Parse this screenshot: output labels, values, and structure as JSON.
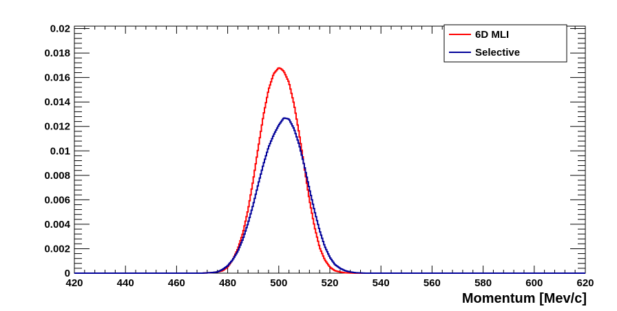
{
  "chart_data": {
    "type": "line",
    "title": "",
    "xlabel": "Momentum [Mev/c]",
    "ylabel": "",
    "xlim": [
      420,
      620
    ],
    "ylim": [
      0,
      0.0202
    ],
    "x_ticks": [
      420,
      440,
      460,
      480,
      500,
      520,
      540,
      560,
      580,
      600,
      620
    ],
    "y_ticks": [
      0,
      0.002,
      0.004,
      0.006,
      0.008,
      0.01,
      0.012,
      0.014,
      0.016,
      0.018,
      0.02
    ],
    "x_tick_labels": [
      "420",
      "440",
      "460",
      "480",
      "500",
      "520",
      "540",
      "560",
      "580",
      "600",
      "620"
    ],
    "y_tick_labels": [
      "0",
      "0.002",
      "0.004",
      "0.006",
      "0.008",
      "0.01",
      "0.012",
      "0.014",
      "0.016",
      "0.018",
      "0.02"
    ],
    "grid": false,
    "legend_position": "top-right",
    "series": [
      {
        "name": "6D MLI",
        "color": "#ff0000",
        "x": [
          420,
          470,
          474,
          476,
          478,
          480,
          482,
          484,
          486,
          488,
          490,
          492,
          494,
          496,
          498,
          500,
          501,
          502,
          504,
          506,
          508,
          510,
          512,
          514,
          516,
          518,
          520,
          522,
          524,
          526,
          530,
          620
        ],
        "values": [
          0,
          0,
          5e-05,
          0.0001,
          0.0002,
          0.0005,
          0.0011,
          0.002,
          0.0033,
          0.0052,
          0.0076,
          0.0103,
          0.0129,
          0.015,
          0.0163,
          0.0168,
          0.0167,
          0.0165,
          0.0156,
          0.0138,
          0.0114,
          0.0087,
          0.006,
          0.0038,
          0.0021,
          0.0011,
          0.0005,
          0.0002,
          0.0001,
          3e-05,
          0,
          0
        ]
      },
      {
        "name": "Selective",
        "color": "#000099",
        "x": [
          420,
          470,
          474,
          476,
          478,
          480,
          482,
          484,
          486,
          488,
          490,
          492,
          494,
          496,
          498,
          500,
          502,
          504,
          506,
          508,
          510,
          512,
          514,
          516,
          518,
          520,
          522,
          524,
          526,
          528,
          530,
          534,
          620
        ],
        "values": [
          0,
          0,
          5e-05,
          0.0001,
          0.0003,
          0.0006,
          0.0011,
          0.0018,
          0.0028,
          0.0041,
          0.0056,
          0.0073,
          0.0089,
          0.0103,
          0.0113,
          0.0121,
          0.0127,
          0.0126,
          0.0118,
          0.0105,
          0.0088,
          0.0069,
          0.0051,
          0.0035,
          0.0022,
          0.0013,
          0.0007,
          0.0004,
          0.0002,
          0.0001,
          4e-05,
          0,
          0
        ]
      }
    ]
  }
}
